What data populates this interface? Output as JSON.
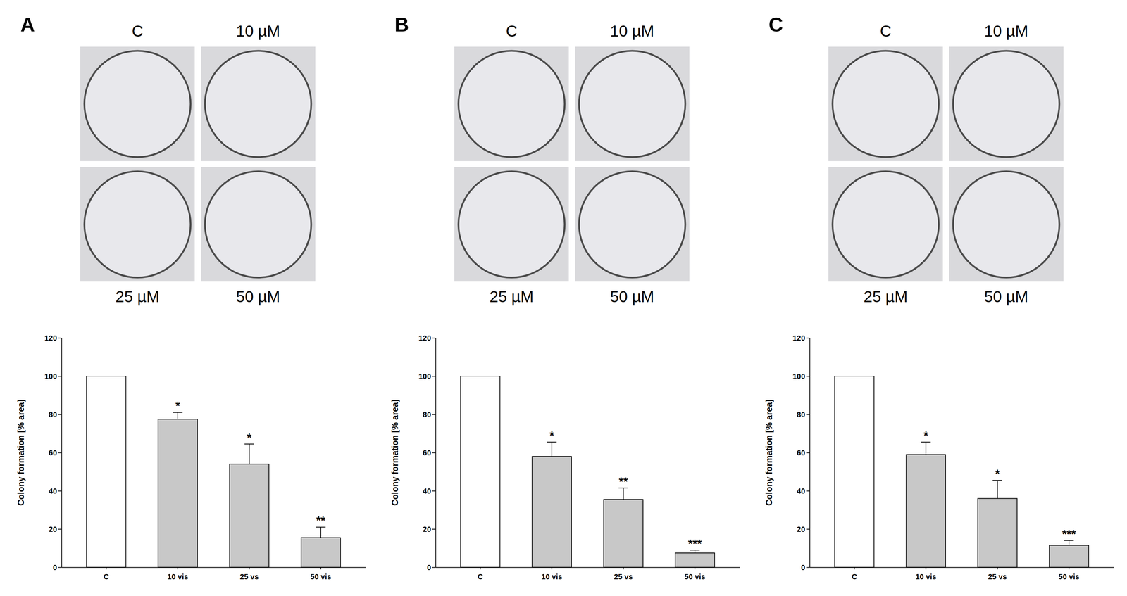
{
  "chart_data": [
    {
      "type": "bar",
      "title": "A",
      "plate_labels": [
        "C",
        "10 µM",
        "25 µM",
        "50 µM"
      ],
      "categories": [
        "C",
        "10 vis",
        "25 vs",
        "50 vis"
      ],
      "values": [
        100,
        77.5,
        54,
        15.5
      ],
      "errors": [
        null,
        3.5,
        10.5,
        5.5
      ],
      "annotations": [
        null,
        "*",
        "*",
        "**"
      ],
      "colors": [
        "#ffffff",
        "#c8c8c8",
        "#c8c8c8",
        "#c8c8c8"
      ],
      "y_label": "Colony formation [% area]",
      "ylim": [
        0,
        120
      ],
      "yticks": [
        0,
        20,
        40,
        60,
        80,
        100,
        120
      ],
      "grid": false
    },
    {
      "type": "bar",
      "title": "B",
      "plate_labels": [
        "C",
        "10 µM",
        "25 µM",
        "50 µM"
      ],
      "categories": [
        "C",
        "10 vis",
        "25 vs",
        "50 vis"
      ],
      "values": [
        100,
        58,
        35.5,
        7.5
      ],
      "errors": [
        null,
        7.5,
        6,
        1.5
      ],
      "annotations": [
        null,
        "*",
        "**",
        "***"
      ],
      "colors": [
        "#ffffff",
        "#c8c8c8",
        "#c8c8c8",
        "#c8c8c8"
      ],
      "y_label": "Colony formation [% area]",
      "ylim": [
        0,
        120
      ],
      "yticks": [
        0,
        20,
        40,
        60,
        80,
        100,
        120
      ],
      "grid": false
    },
    {
      "type": "bar",
      "title": "C",
      "plate_labels": [
        "C",
        "10 µM",
        "25 µM",
        "50 µM"
      ],
      "categories": [
        "C",
        "10 vis",
        "25 vs",
        "50 vis"
      ],
      "values": [
        100,
        59,
        36,
        11.5
      ],
      "errors": [
        null,
        6.5,
        9.5,
        2.5
      ],
      "annotations": [
        null,
        "*",
        "*",
        "***"
      ],
      "colors": [
        "#ffffff",
        "#c8c8c8",
        "#c8c8c8",
        "#c8c8c8"
      ],
      "y_label": "Colony formation [% area]",
      "ylim": [
        0,
        120
      ],
      "yticks": [
        0,
        20,
        40,
        60,
        80,
        100,
        120
      ],
      "grid": false
    }
  ]
}
